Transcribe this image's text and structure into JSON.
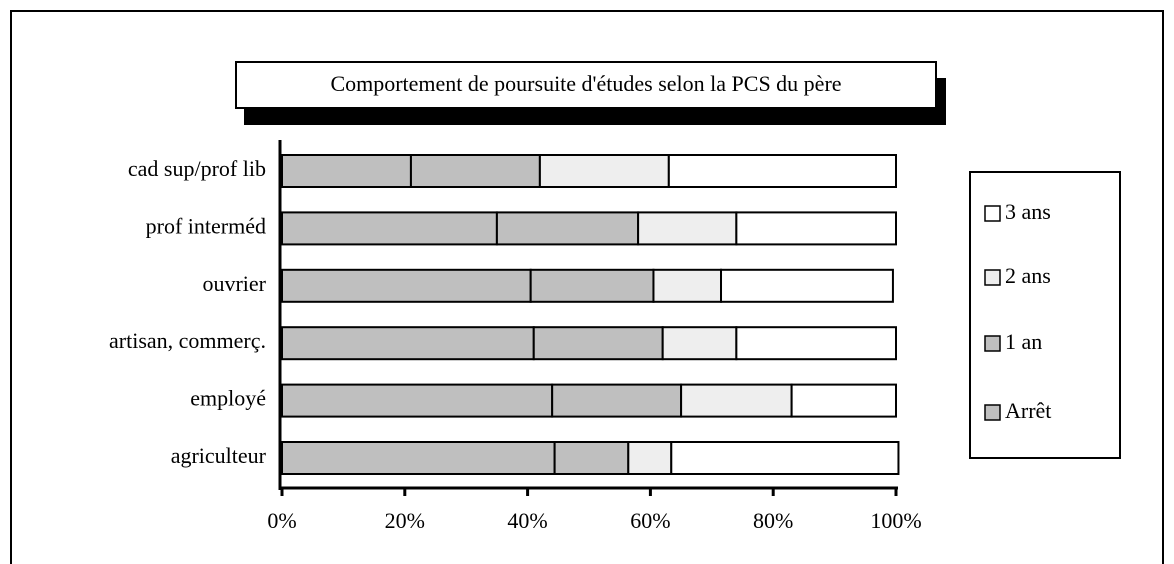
{
  "chart_data": {
    "type": "stacked-bar-horizontal",
    "title": "Comportement de poursuite d'études selon la PCS du père",
    "categories": [
      "cad sup/prof lib",
      "prof interméd",
      "ouvrier",
      "artisan, commerç.",
      "employé",
      "agriculteur"
    ],
    "series": [
      {
        "name": "Arrêt",
        "color": "#bfbfbf",
        "values": [
          21,
          35,
          40.5,
          41,
          44,
          44.4
        ]
      },
      {
        "name": "1 an",
        "color": "#bfbfbf",
        "values": [
          21,
          23,
          20,
          21,
          21,
          12
        ]
      },
      {
        "name": "2 ans",
        "color": "#eeeeee",
        "values": [
          21,
          16,
          11,
          12,
          18,
          7
        ]
      },
      {
        "name": "3 ans",
        "color": "#ffffff",
        "values": [
          37,
          26,
          28,
          26,
          17,
          37
        ]
      }
    ],
    "xlim": [
      0,
      100
    ],
    "xticks": [
      {
        "value": 0,
        "label": "0%"
      },
      {
        "value": 20,
        "label": "20%"
      },
      {
        "value": 40,
        "label": "40%"
      },
      {
        "value": 60,
        "label": "60%"
      },
      {
        "value": 80,
        "label": "80%"
      },
      {
        "value": 100,
        "label": "100%"
      }
    ]
  }
}
